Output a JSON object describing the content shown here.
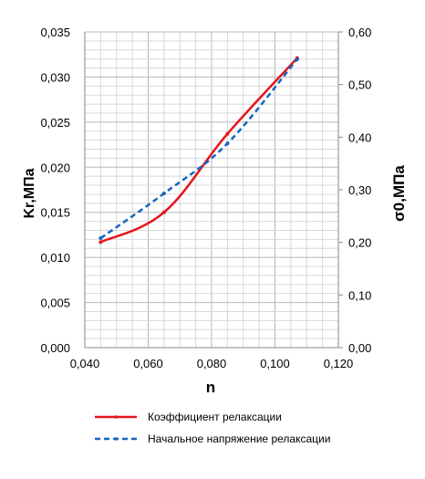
{
  "chart_data": {
    "type": "line",
    "x_axis": {
      "label": "n",
      "range": [
        0.04,
        0.12
      ],
      "ticks": [
        0.04,
        0.06,
        0.08,
        0.1,
        0.12
      ],
      "tick_labels": [
        "0,040",
        "0,060",
        "0,080",
        "0,100",
        "0,120"
      ]
    },
    "y_axis_left": {
      "label": "Kr,МПа",
      "range": [
        0,
        0.035
      ],
      "ticks": [
        0,
        0.005,
        0.01,
        0.015,
        0.02,
        0.025,
        0.03,
        0.035
      ],
      "tick_labels": [
        "0,000",
        "0,005",
        "0,010",
        "0,015",
        "0,020",
        "0,025",
        "0,030",
        "0,035"
      ]
    },
    "y_axis_right": {
      "label": "σ0,МПа",
      "range": [
        0,
        0.6
      ],
      "ticks": [
        0,
        0.1,
        0.2,
        0.3,
        0.4,
        0.5,
        0.6
      ],
      "tick_labels": [
        "0,00",
        "0,10",
        "0,20",
        "0,30",
        "0,40",
        "0,50",
        "0,60"
      ]
    },
    "grid": true,
    "legend_position": "bottom",
    "series": [
      {
        "name": "Коэффициент релаксации",
        "axis": "left",
        "color": "#e3161c",
        "style": "solid",
        "x": [
          0.045,
          0.065,
          0.085,
          0.107
        ],
        "y": [
          0.0117,
          0.015,
          0.0237,
          0.0321
        ]
      },
      {
        "name": "Начальное напряжение релаксации",
        "axis": "right",
        "color": "#1565c0",
        "style": "dashed",
        "x": [
          0.045,
          0.065,
          0.085,
          0.107
        ],
        "y": [
          0.208,
          0.293,
          0.388,
          0.548
        ]
      }
    ]
  }
}
